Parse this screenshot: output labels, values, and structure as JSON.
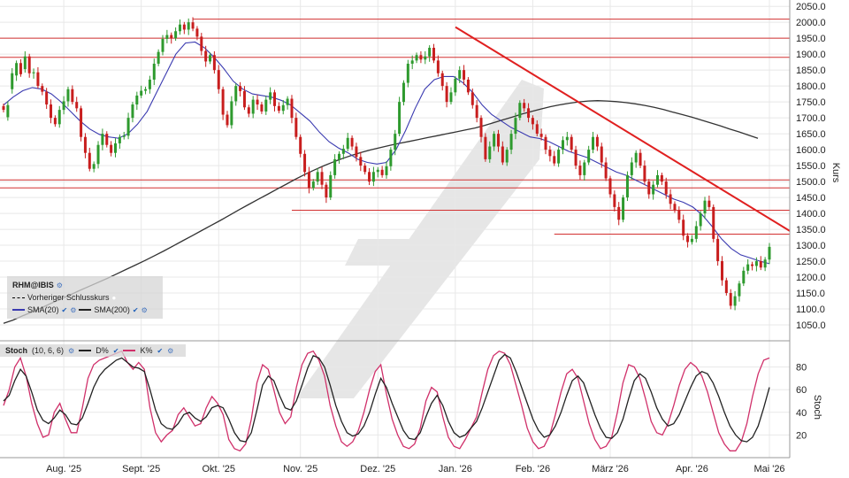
{
  "chart_data": [
    {
      "type": "candlestick",
      "symbol": "RHM@IBIS",
      "ylabel": "Kurs",
      "ylim": [
        1000,
        2070
      ],
      "y_ticks": [
        "2050.0",
        "2000.0",
        "1950.0",
        "1900.0",
        "1850.0",
        "1800.0",
        "1750.0",
        "1700.0",
        "1650.0",
        "1600.0",
        "1550.0",
        "1500.0",
        "1450.0",
        "1400.0",
        "1350.0",
        "1300.0",
        "1250.0",
        "1200.0",
        "1150.0",
        "1100.0",
        "1050.0"
      ],
      "x_ticks": [
        "Aug. '25",
        "Sept. '25",
        "Okt. '25",
        "Nov. '25",
        "Dez. '25",
        "Jan. '26",
        "Feb. '26",
        "März '26",
        "Apr. '26",
        "Mai '26"
      ],
      "legend": {
        "symbol_label": "RHM@IBIS",
        "prev_close_label": "Vorheriger Schlusskurs",
        "sma20_label": "SMA(20)",
        "sma200_label": "SMA(200)"
      },
      "candles": [
        [
          1737,
          1725
        ],
        [
          1702,
          1740
        ],
        [
          1790,
          1840
        ],
        [
          1833,
          1872
        ],
        [
          1872,
          1837
        ],
        [
          1853,
          1893
        ],
        [
          1893,
          1840
        ],
        [
          1840,
          1843
        ],
        [
          1843,
          1800
        ],
        [
          1800,
          1782
        ],
        [
          1782,
          1742
        ],
        [
          1742,
          1700
        ],
        [
          1700,
          1680
        ],
        [
          1680,
          1725
        ],
        [
          1725,
          1752
        ],
        [
          1752,
          1790
        ],
        [
          1790,
          1750
        ],
        [
          1750,
          1730
        ],
        [
          1730,
          1640
        ],
        [
          1640,
          1590
        ],
        [
          1590,
          1540
        ],
        [
          1540,
          1555
        ],
        [
          1555,
          1615
        ],
        [
          1615,
          1650
        ],
        [
          1650,
          1615
        ],
        [
          1615,
          1590
        ],
        [
          1590,
          1620
        ],
        [
          1620,
          1640
        ],
        [
          1640,
          1644
        ],
        [
          1644,
          1700
        ],
        [
          1700,
          1742
        ],
        [
          1742,
          1770
        ],
        [
          1770,
          1785
        ],
        [
          1785,
          1790
        ],
        [
          1790,
          1820
        ],
        [
          1820,
          1870
        ],
        [
          1870,
          1907
        ],
        [
          1907,
          1948
        ],
        [
          1948,
          1960
        ],
        [
          1960,
          1950
        ],
        [
          1950,
          1972
        ],
        [
          1972,
          1993
        ],
        [
          1993,
          1977
        ],
        [
          1977,
          2000
        ],
        [
          2000,
          1980
        ],
        [
          1980,
          1955
        ],
        [
          1955,
          1910
        ],
        [
          1910,
          1877
        ],
        [
          1877,
          1897
        ],
        [
          1897,
          1850
        ],
        [
          1850,
          1790
        ],
        [
          1790,
          1710
        ],
        [
          1710,
          1677
        ],
        [
          1677,
          1752
        ],
        [
          1752,
          1800
        ],
        [
          1800,
          1784
        ],
        [
          1784,
          1733
        ],
        [
          1733,
          1713
        ],
        [
          1713,
          1757
        ],
        [
          1757,
          1742
        ],
        [
          1742,
          1720
        ],
        [
          1720,
          1757
        ],
        [
          1757,
          1780
        ],
        [
          1780,
          1737
        ],
        [
          1737,
          1722
        ],
        [
          1722,
          1740
        ],
        [
          1740,
          1760
        ],
        [
          1760,
          1700
        ],
        [
          1700,
          1640
        ],
        [
          1640,
          1587
        ],
        [
          1587,
          1530
        ],
        [
          1530,
          1480
        ],
        [
          1480,
          1500
        ],
        [
          1500,
          1530
        ],
        [
          1530,
          1490
        ],
        [
          1490,
          1450
        ],
        [
          1450,
          1520
        ],
        [
          1520,
          1570
        ],
        [
          1570,
          1587
        ],
        [
          1587,
          1603
        ],
        [
          1603,
          1637
        ],
        [
          1637,
          1610
        ],
        [
          1610,
          1577
        ],
        [
          1577,
          1550
        ],
        [
          1550,
          1530
        ],
        [
          1530,
          1500
        ],
        [
          1500,
          1530
        ],
        [
          1530,
          1537
        ],
        [
          1537,
          1520
        ],
        [
          1520,
          1548
        ],
        [
          1548,
          1600
        ],
        [
          1600,
          1650
        ],
        [
          1650,
          1750
        ],
        [
          1750,
          1810
        ],
        [
          1810,
          1870
        ],
        [
          1870,
          1880
        ],
        [
          1880,
          1897
        ],
        [
          1897,
          1883
        ],
        [
          1883,
          1893
        ],
        [
          1893,
          1920
        ],
        [
          1920,
          1880
        ],
        [
          1880,
          1840
        ],
        [
          1840,
          1800
        ],
        [
          1800,
          1750
        ],
        [
          1750,
          1780
        ],
        [
          1780,
          1823
        ],
        [
          1823,
          1850
        ],
        [
          1850,
          1820
        ],
        [
          1820,
          1780
        ],
        [
          1780,
          1740
        ],
        [
          1740,
          1700
        ],
        [
          1700,
          1640
        ],
        [
          1640,
          1570
        ],
        [
          1570,
          1610
        ],
        [
          1610,
          1650
        ],
        [
          1650,
          1610
        ],
        [
          1610,
          1560
        ],
        [
          1560,
          1600
        ],
        [
          1600,
          1650
        ],
        [
          1650,
          1700
        ],
        [
          1700,
          1747
        ],
        [
          1747,
          1730
        ],
        [
          1730,
          1700
        ],
        [
          1700,
          1680
        ],
        [
          1680,
          1650
        ],
        [
          1650,
          1640
        ],
        [
          1640,
          1600
        ],
        [
          1600,
          1580
        ],
        [
          1580,
          1557
        ],
        [
          1557,
          1600
        ],
        [
          1600,
          1630
        ],
        [
          1630,
          1640
        ],
        [
          1640,
          1600
        ],
        [
          1600,
          1550
        ],
        [
          1550,
          1520
        ],
        [
          1520,
          1560
        ],
        [
          1560,
          1600
        ],
        [
          1600,
          1640
        ],
        [
          1640,
          1610
        ],
        [
          1610,
          1560
        ],
        [
          1560,
          1510
        ],
        [
          1510,
          1460
        ],
        [
          1460,
          1420
        ],
        [
          1420,
          1380
        ],
        [
          1380,
          1450
        ],
        [
          1450,
          1520
        ],
        [
          1520,
          1560
        ],
        [
          1560,
          1590
        ],
        [
          1590,
          1550
        ],
        [
          1550,
          1500
        ],
        [
          1500,
          1460
        ],
        [
          1460,
          1490
        ],
        [
          1490,
          1520
        ],
        [
          1520,
          1500
        ],
        [
          1500,
          1460
        ],
        [
          1460,
          1430
        ],
        [
          1430,
          1410
        ],
        [
          1410,
          1380
        ],
        [
          1380,
          1330
        ],
        [
          1330,
          1310
        ],
        [
          1310,
          1320
        ],
        [
          1320,
          1360
        ],
        [
          1360,
          1400
        ],
        [
          1400,
          1440
        ],
        [
          1440,
          1420
        ],
        [
          1420,
          1320
        ],
        [
          1320,
          1250
        ],
        [
          1250,
          1190
        ],
        [
          1190,
          1150
        ],
        [
          1150,
          1110
        ],
        [
          1110,
          1140
        ],
        [
          1140,
          1180
        ],
        [
          1180,
          1220
        ],
        [
          1220,
          1240
        ],
        [
          1240,
          1235
        ],
        [
          1235,
          1250
        ],
        [
          1250,
          1230
        ],
        [
          1230,
          1255
        ],
        [
          1255,
          1295
        ]
      ],
      "sma20": [
        1740,
        1765,
        1785,
        1795,
        1790,
        1775,
        1750,
        1720,
        1690,
        1665,
        1648,
        1640,
        1636,
        1650,
        1680,
        1720,
        1780,
        1840,
        1900,
        1935,
        1938,
        1920,
        1890,
        1855,
        1815,
        1790,
        1775,
        1770,
        1765,
        1755,
        1740,
        1715,
        1690,
        1655,
        1625,
        1605,
        1590,
        1570,
        1560,
        1555,
        1560,
        1600,
        1660,
        1730,
        1790,
        1820,
        1830,
        1830,
        1810,
        1780,
        1740,
        1710,
        1690,
        1670,
        1655,
        1640,
        1635,
        1625,
        1610,
        1595,
        1585,
        1575,
        1560,
        1545,
        1530,
        1520,
        1505,
        1490,
        1475,
        1460,
        1445,
        1435,
        1420,
        1395,
        1360,
        1320,
        1290,
        1270,
        1260,
        1250,
        1242
      ],
      "sma200": [
        1055,
        1065,
        1078,
        1090,
        1103,
        1117,
        1130,
        1143,
        1157,
        1170,
        1183,
        1196,
        1210,
        1224,
        1238,
        1252,
        1267,
        1282,
        1298,
        1314,
        1330,
        1346,
        1362,
        1378,
        1395,
        1412,
        1428,
        1444,
        1460,
        1476,
        1492,
        1508,
        1523,
        1537,
        1550,
        1562,
        1573,
        1583,
        1592,
        1600,
        1607,
        1614,
        1620,
        1626,
        1632,
        1638,
        1644,
        1650,
        1656,
        1662,
        1668,
        1676,
        1685,
        1694,
        1703,
        1712,
        1720,
        1728,
        1735,
        1741,
        1746,
        1750,
        1753,
        1754,
        1753,
        1751,
        1748,
        1744,
        1739,
        1733,
        1726,
        1718,
        1710,
        1702,
        1693,
        1684,
        1675,
        1665,
        1656,
        1646,
        1636
      ],
      "horizontal_levels": [
        2010,
        1950,
        1890,
        1505,
        1480,
        1410,
        1335
      ],
      "trendline": {
        "from": [
          1985,
          1840
        ],
        "to": [
          1345,
          1315
        ]
      }
    },
    {
      "type": "line",
      "title": "Stoch",
      "params": "(10, 6, 6)",
      "ylabel": "Stoch",
      "ylim": [
        0,
        100
      ],
      "y_ticks": [
        "80",
        "60",
        "40",
        "20"
      ],
      "series": [
        {
          "name": "D%",
          "color": "#222222"
        },
        {
          "name": "K%",
          "color": "#d0306a"
        }
      ],
      "d_values": [
        50,
        55,
        68,
        78,
        72,
        58,
        42,
        33,
        30,
        35,
        42,
        38,
        30,
        29,
        35,
        48,
        62,
        72,
        78,
        82,
        86,
        88,
        84,
        80,
        79,
        76,
        60,
        42,
        30,
        26,
        25,
        30,
        38,
        40,
        35,
        32,
        36,
        44,
        46,
        44,
        34,
        22,
        15,
        14,
        22,
        42,
        64,
        72,
        68,
        55,
        44,
        42,
        50,
        64,
        79,
        90,
        88,
        80,
        64,
        46,
        32,
        22,
        19,
        21,
        28,
        40,
        56,
        70,
        62,
        48,
        36,
        24,
        17,
        16,
        22,
        36,
        48,
        55,
        46,
        32,
        22,
        18,
        20,
        26,
        32,
        44,
        58,
        72,
        86,
        91,
        88,
        76,
        62,
        48,
        34,
        24,
        18,
        20,
        28,
        40,
        55,
        68,
        72,
        66,
        52,
        38,
        26,
        18,
        17,
        22,
        34,
        52,
        68,
        74,
        70,
        58,
        44,
        34,
        28,
        30,
        38,
        50,
        62,
        72,
        76,
        74,
        66,
        54,
        40,
        28,
        20,
        15,
        14,
        18,
        28,
        44,
        62
      ],
      "k_values": [
        46,
        60,
        80,
        88,
        72,
        48,
        30,
        18,
        20,
        40,
        48,
        34,
        22,
        22,
        44,
        70,
        82,
        86,
        88,
        90,
        92,
        94,
        84,
        78,
        84,
        78,
        44,
        22,
        14,
        20,
        24,
        38,
        44,
        36,
        28,
        30,
        44,
        54,
        48,
        38,
        16,
        8,
        6,
        12,
        34,
        66,
        82,
        78,
        60,
        40,
        30,
        36,
        62,
        82,
        92,
        94,
        86,
        72,
        46,
        28,
        14,
        10,
        14,
        24,
        40,
        60,
        76,
        82,
        56,
        34,
        20,
        10,
        8,
        12,
        26,
        50,
        62,
        58,
        36,
        18,
        10,
        8,
        16,
        26,
        36,
        58,
        78,
        90,
        94,
        92,
        82,
        64,
        46,
        26,
        14,
        8,
        10,
        20,
        38,
        58,
        74,
        78,
        70,
        50,
        30,
        16,
        8,
        10,
        18,
        40,
        66,
        82,
        80,
        70,
        52,
        32,
        22,
        20,
        30,
        46,
        64,
        78,
        84,
        80,
        72,
        58,
        40,
        22,
        12,
        6,
        6,
        14,
        30,
        54,
        74,
        86,
        88
      ]
    }
  ]
}
